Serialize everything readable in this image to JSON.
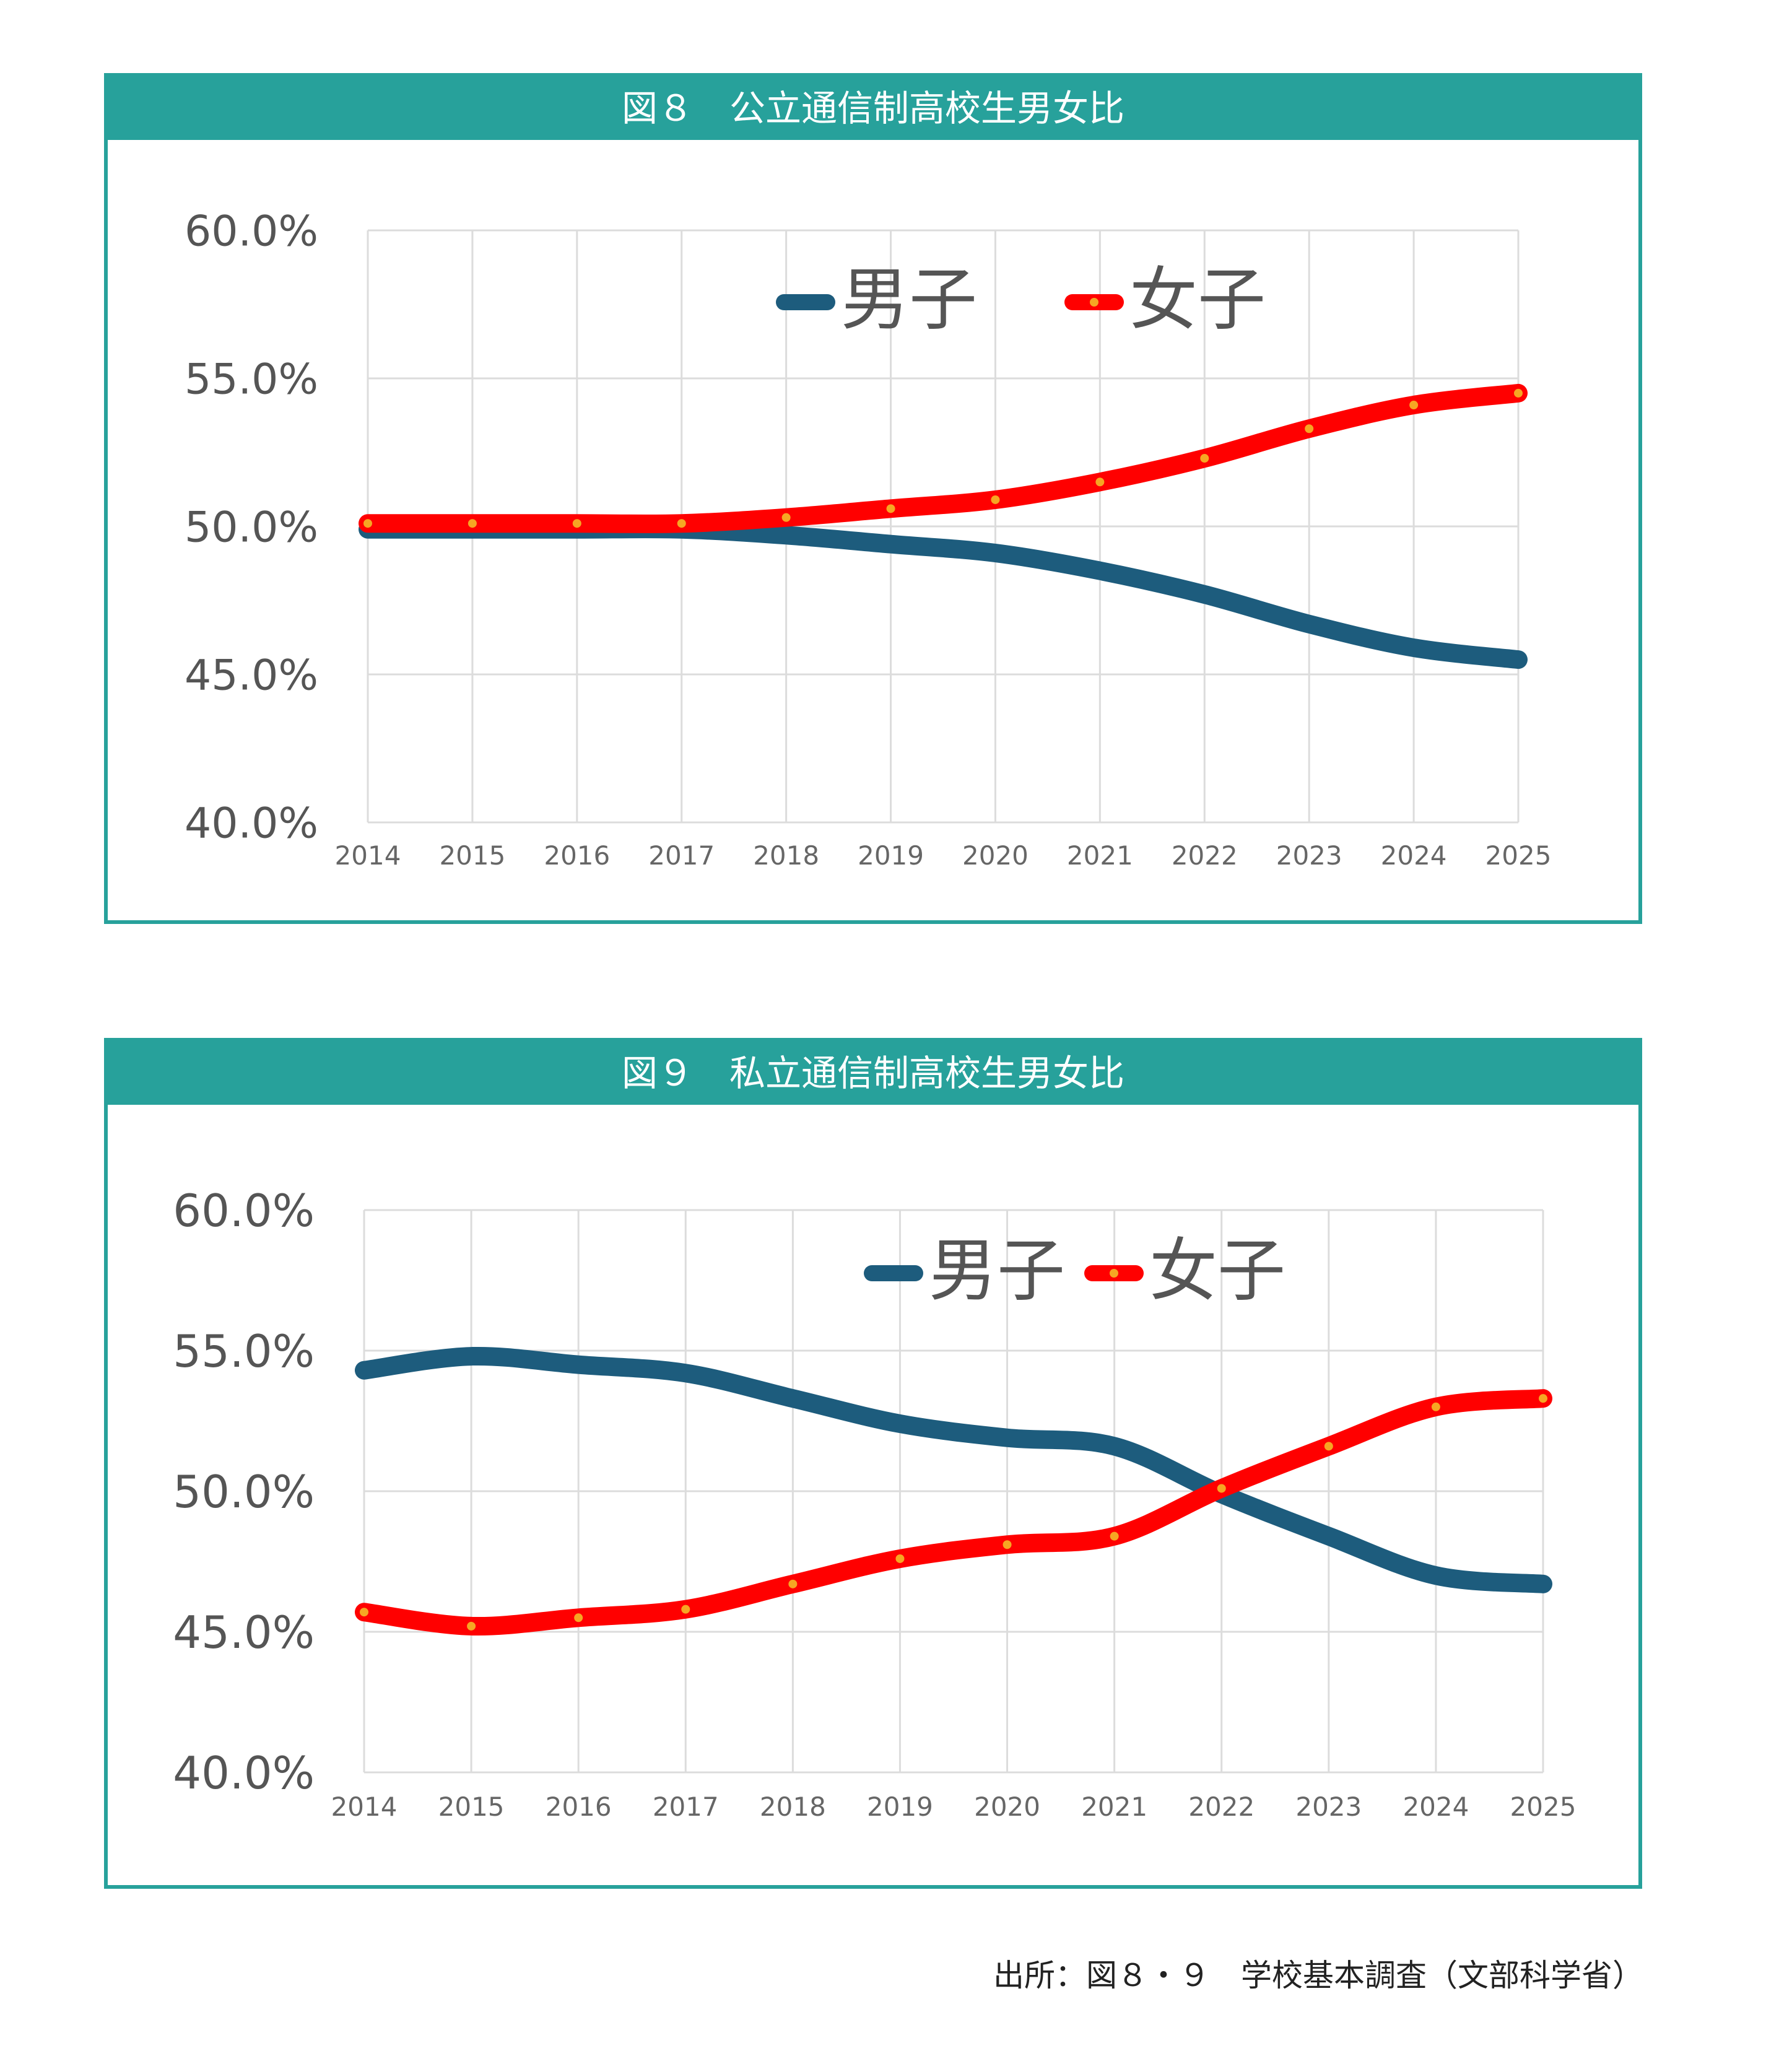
{
  "charts": [
    {
      "header": "図８　公立通信制高校生男女比"
    },
    {
      "header": "図９　私立通信制高校生男女比"
    }
  ],
  "source": "出所：図８・９　学校基本調査（文部科学省）",
  "colors": {
    "header_bg": "#27a19b",
    "male": "#1d5c7d",
    "female": "#ff0000",
    "marker": "#f6a623",
    "grid": "#dcdcdc"
  },
  "chart_data": [
    {
      "type": "line",
      "categories": [
        "2014",
        "2015",
        "2016",
        "2017",
        "2018",
        "2019",
        "2020",
        "2021",
        "2022",
        "2023",
        "2024",
        "2025"
      ],
      "ylim": [
        0.4,
        0.6
      ],
      "yticks": [
        "60.0%",
        "55.0%",
        "50.0%",
        "45.0%",
        "40.0%"
      ],
      "grid": true,
      "legend_position": "top-center",
      "series": [
        {
          "name": "男子",
          "color": "#1d5c7d",
          "values": [
            0.499,
            0.499,
            0.499,
            0.499,
            0.497,
            0.494,
            0.491,
            0.485,
            0.477,
            0.467,
            0.459,
            0.455
          ]
        },
        {
          "name": "女子",
          "color": "#ff0000",
          "values": [
            0.501,
            0.501,
            0.501,
            0.501,
            0.503,
            0.506,
            0.509,
            0.515,
            0.523,
            0.533,
            0.541,
            0.545
          ]
        }
      ]
    },
    {
      "type": "line",
      "categories": [
        "2014",
        "2015",
        "2016",
        "2017",
        "2018",
        "2019",
        "2020",
        "2021",
        "2022",
        "2023",
        "2024",
        "2025"
      ],
      "ylim": [
        0.4,
        0.6
      ],
      "yticks": [
        "60.0%",
        "55.0%",
        "50.0%",
        "45.0%",
        "40.0%"
      ],
      "grid": true,
      "legend_position": "top-right",
      "series": [
        {
          "name": "男子",
          "color": "#1d5c7d",
          "values": [
            0.543,
            0.548,
            0.545,
            0.542,
            0.533,
            0.524,
            0.519,
            0.516,
            0.499,
            0.484,
            0.47,
            0.467
          ]
        },
        {
          "name": "女子",
          "color": "#ff0000",
          "values": [
            0.457,
            0.452,
            0.455,
            0.458,
            0.467,
            0.476,
            0.481,
            0.484,
            0.501,
            0.516,
            0.53,
            0.533
          ]
        }
      ]
    }
  ]
}
